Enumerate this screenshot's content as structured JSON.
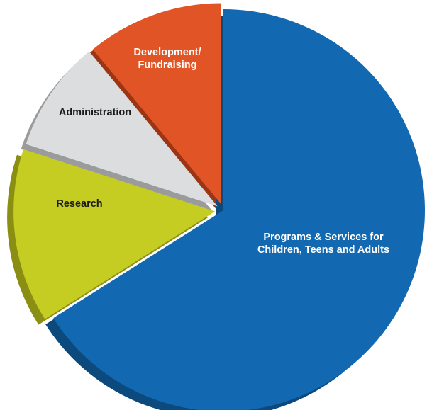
{
  "chart_data": {
    "type": "pie",
    "title": "",
    "legend": "none",
    "slices": [
      {
        "name": "Programs & Services for Children, Teens and Adults",
        "label_lines": [
          "Programs & Services for",
          "Children, Teens and Adults"
        ],
        "value": 66,
        "color": "#1369b1",
        "shade": "#0c4a7e",
        "text_color": "#ffffff"
      },
      {
        "name": "Research",
        "label_lines": [
          "Research"
        ],
        "value": 14,
        "color": "#c5cc22",
        "shade": "#8a8f13",
        "text_color": "#1a1a1a"
      },
      {
        "name": "Administration",
        "label_lines": [
          "Administration"
        ],
        "value": 9,
        "color": "#dcdddf",
        "shade": "#9a9b9d",
        "text_color": "#1a1a1a"
      },
      {
        "name": "Development/ Fundraising",
        "label_lines": [
          "Development/",
          "Fundraising"
        ],
        "value": 11,
        "color": "#e15425",
        "shade": "#9b3514",
        "text_color": "#ffffff"
      }
    ]
  }
}
